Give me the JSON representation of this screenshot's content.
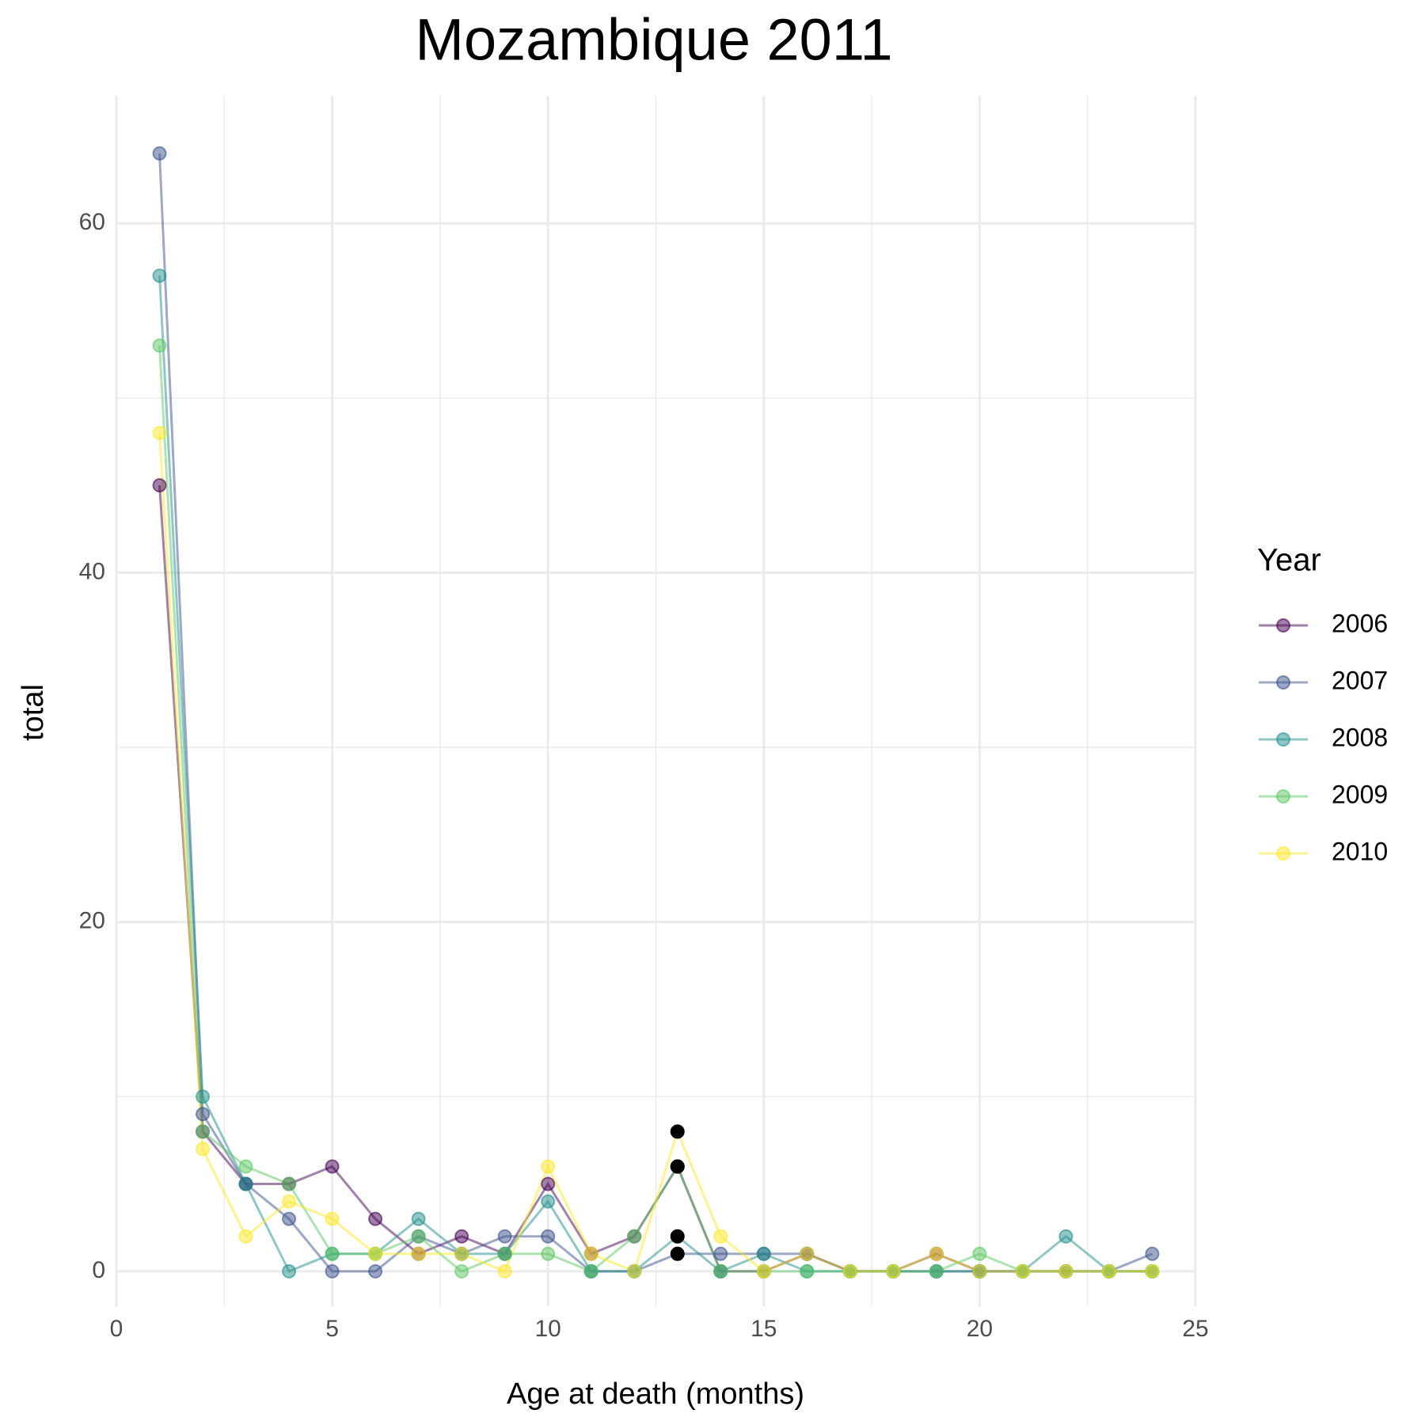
{
  "chart_data": {
    "type": "line",
    "title": "Mozambique 2011",
    "x_label": "Age at death (months)",
    "y_label": "total",
    "legend_title": "Year",
    "x": [
      1,
      2,
      3,
      4,
      5,
      6,
      7,
      8,
      9,
      10,
      11,
      12,
      13,
      14,
      15,
      16,
      17,
      18,
      19,
      20,
      21,
      22,
      23,
      24
    ],
    "series": [
      {
        "name": "2006",
        "color": "#440154",
        "values": [
          45,
          8,
          5,
          5,
          6,
          3,
          1,
          2,
          1,
          5,
          1,
          2,
          6,
          0,
          0,
          1,
          0,
          0,
          1,
          0,
          0,
          0,
          0,
          0
        ]
      },
      {
        "name": "2007",
        "color": "#3b528b",
        "values": [
          64,
          9,
          5,
          3,
          0,
          0,
          2,
          1,
          2,
          2,
          0,
          0,
          1,
          1,
          1,
          1,
          0,
          0,
          0,
          0,
          0,
          0,
          0,
          1
        ]
      },
      {
        "name": "2008",
        "color": "#21908c",
        "values": [
          57,
          10,
          5,
          0,
          1,
          1,
          3,
          1,
          1,
          4,
          0,
          0,
          2,
          0,
          1,
          0,
          0,
          0,
          0,
          0,
          0,
          2,
          0,
          0
        ]
      },
      {
        "name": "2009",
        "color": "#5dc863",
        "values": [
          53,
          8,
          6,
          5,
          1,
          1,
          2,
          0,
          1,
          1,
          0,
          2,
          6,
          0,
          0,
          0,
          0,
          0,
          0,
          1,
          0,
          0,
          0,
          0
        ]
      },
      {
        "name": "2010",
        "color": "#fde725",
        "values": [
          48,
          7,
          2,
          4,
          3,
          1,
          1,
          1,
          0,
          6,
          1,
          0,
          8,
          2,
          0,
          1,
          0,
          0,
          1,
          0,
          0,
          0,
          0,
          0
        ]
      }
    ],
    "highlight": {
      "x": 13,
      "color": "#000000"
    },
    "xlim": [
      0,
      25
    ],
    "xticks": [
      0,
      5,
      10,
      15,
      20,
      25
    ],
    "ylim": [
      -2,
      67.3
    ],
    "yticks": [
      0,
      20,
      40,
      60
    ],
    "grid": true,
    "legend": "right"
  }
}
